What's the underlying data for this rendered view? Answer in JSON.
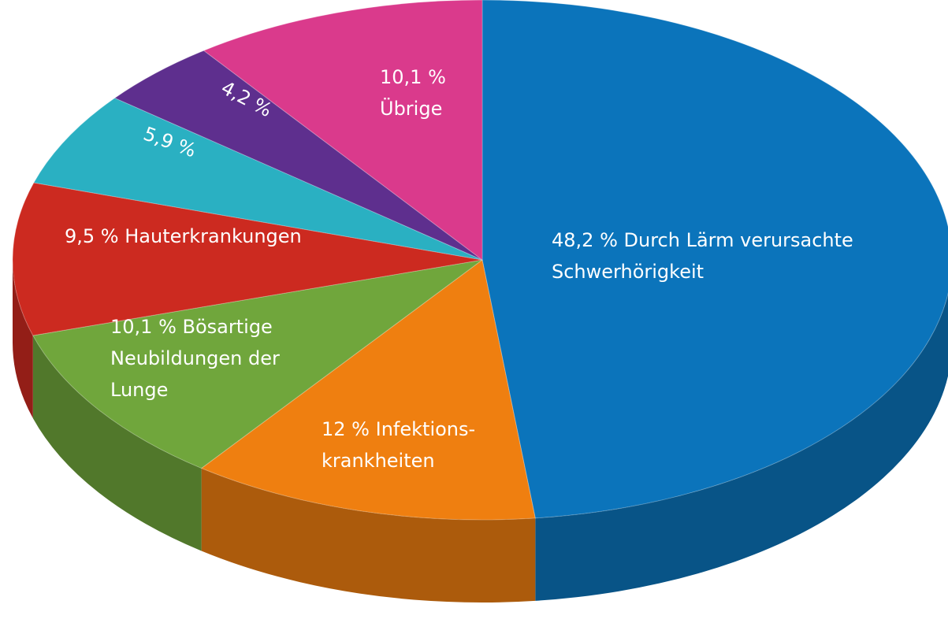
{
  "chart_data": {
    "type": "pie",
    "categories": [
      "Durch Lärm verursachte\nSchwerhörigkeit",
      "Infektions-\nkrankheiten",
      "Bösartige\nNeubildungen der\nLunge",
      "Hauterkrankungen",
      null,
      null,
      "Übrige"
    ],
    "values": [
      48.2,
      12,
      10.1,
      9.5,
      5.9,
      4.2,
      10.1
    ],
    "value_labels": [
      "48,2 %",
      "12 %",
      "10,1 %",
      "9,5 %",
      "5,9 %",
      "4,2 %",
      "10,1 %"
    ],
    "colors": [
      "#0b74bb",
      "#ef7f10",
      "#70a63c",
      "#cc2a20",
      "#2ab0c2",
      "#5e2f8e",
      "#da3a8c"
    ]
  }
}
